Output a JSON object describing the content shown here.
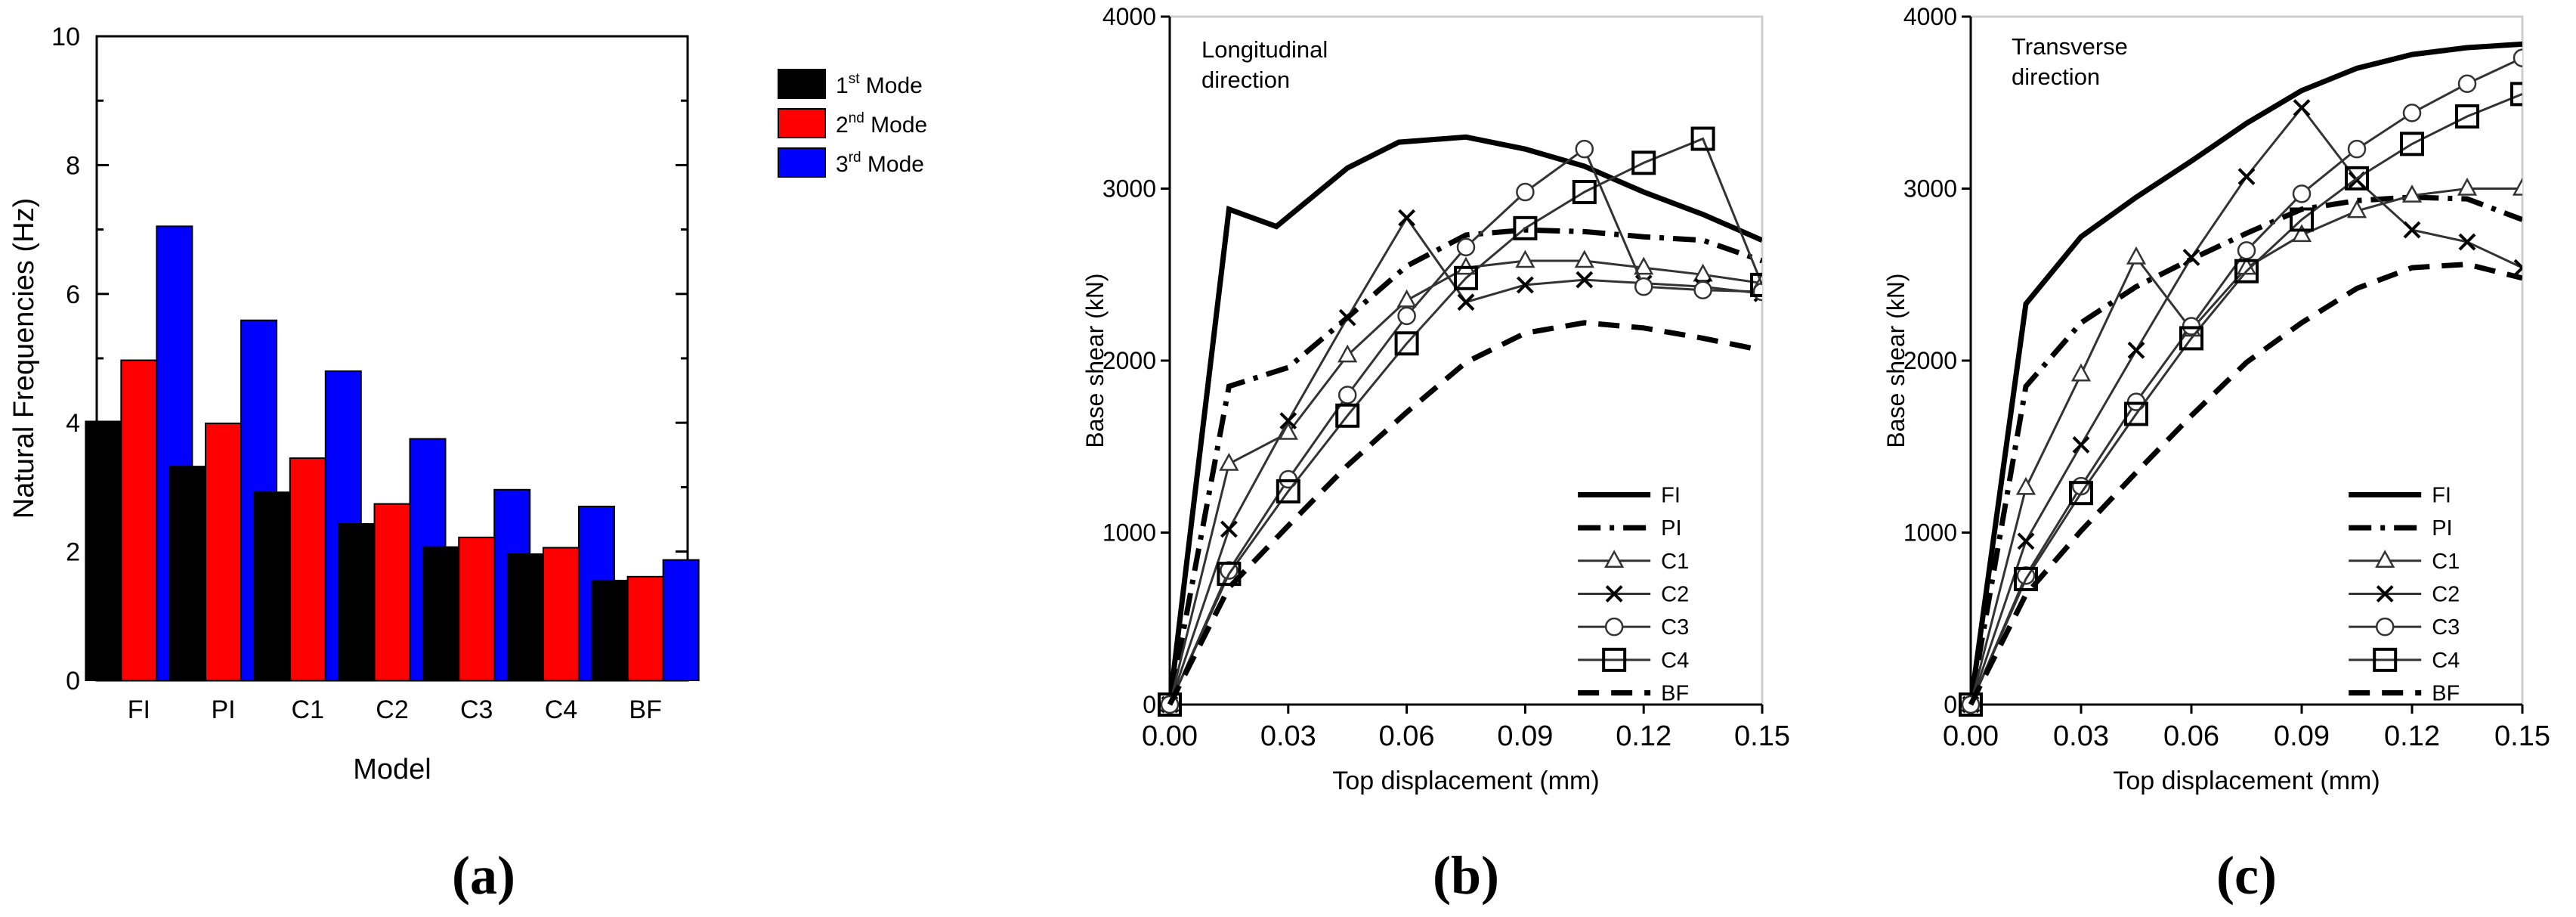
{
  "chart_data": [
    {
      "type": "bar",
      "xlabel": "Model",
      "ylabel": "Natural Frequencies (Hz)",
      "ylim": [
        0,
        10
      ],
      "yticks": [
        0,
        2,
        4,
        6,
        8,
        10
      ],
      "legend_position": "top-right",
      "grid": false,
      "categories": [
        "FI",
        "PI",
        "C1",
        "C2",
        "C3",
        "C4",
        "BF"
      ],
      "series": [
        {
          "name_base": "1",
          "name_sup": "st",
          "name_rest": " Mode",
          "color": "#000000",
          "values": [
            4.02,
            3.32,
            2.92,
            2.43,
            2.07,
            1.96,
            1.55
          ]
        },
        {
          "name_base": "2",
          "name_sup": "nd",
          "name_rest": " Mode",
          "color": "#ff0000",
          "values": [
            4.97,
            3.99,
            3.45,
            2.74,
            2.22,
            2.06,
            1.61
          ]
        },
        {
          "name_base": "3",
          "name_sup": "rd",
          "name_rest": " Mode",
          "color": "#0000ff",
          "values": [
            7.05,
            5.59,
            4.8,
            3.75,
            2.96,
            2.7,
            1.87
          ]
        }
      ],
      "caption": "(a)"
    },
    {
      "type": "line",
      "annotation_lines": [
        "Longitudinal",
        "direction"
      ],
      "xlabel": "Top displacement (mm)",
      "ylabel": "Base shear (kN)",
      "xlim": [
        0,
        0.15
      ],
      "ylim": [
        0,
        4000
      ],
      "xticks": [
        "0.00",
        "0.03",
        "0.06",
        "0.09",
        "0.12",
        "0.15"
      ],
      "yticks": [
        "0",
        "1000",
        "2000",
        "3000",
        "4000"
      ],
      "legend_position": "bottom-right",
      "series": [
        {
          "name": "FI",
          "style": "solid-thick",
          "points": [
            [
              0,
              0
            ],
            [
              0.015,
              2880
            ],
            [
              0.027,
              2780
            ],
            [
              0.045,
              3120
            ],
            [
              0.058,
              3270
            ],
            [
              0.075,
              3300
            ],
            [
              0.09,
              3230
            ],
            [
              0.105,
              3130
            ],
            [
              0.12,
              2980
            ],
            [
              0.135,
              2850
            ],
            [
              0.15,
              2700
            ]
          ]
        },
        {
          "name": "PI",
          "style": "dashdot",
          "points": [
            [
              0,
              0
            ],
            [
              0.015,
              1850
            ],
            [
              0.03,
              1960
            ],
            [
              0.045,
              2250
            ],
            [
              0.06,
              2550
            ],
            [
              0.075,
              2730
            ],
            [
              0.09,
              2760
            ],
            [
              0.105,
              2750
            ],
            [
              0.12,
              2720
            ],
            [
              0.135,
              2700
            ],
            [
              0.15,
              2580
            ]
          ]
        },
        {
          "name": "C1",
          "style": "triangle",
          "points": [
            [
              0,
              0
            ],
            [
              0.015,
              1400
            ],
            [
              0.03,
              1580
            ],
            [
              0.045,
              2030
            ],
            [
              0.06,
              2350
            ],
            [
              0.075,
              2540
            ],
            [
              0.09,
              2580
            ],
            [
              0.105,
              2580
            ],
            [
              0.12,
              2540
            ],
            [
              0.135,
              2500
            ],
            [
              0.15,
              2450
            ]
          ]
        },
        {
          "name": "C2",
          "style": "cross",
          "points": [
            [
              0,
              0
            ],
            [
              0.015,
              1020
            ],
            [
              0.03,
              1650
            ],
            [
              0.045,
              2250
            ],
            [
              0.06,
              2830
            ],
            [
              0.075,
              2340
            ],
            [
              0.09,
              2440
            ],
            [
              0.105,
              2470
            ],
            [
              0.12,
              2450
            ],
            [
              0.135,
              2430
            ],
            [
              0.15,
              2390
            ]
          ]
        },
        {
          "name": "C3",
          "style": "circle",
          "points": [
            [
              0,
              0
            ],
            [
              0.015,
              780
            ],
            [
              0.03,
              1310
            ],
            [
              0.045,
              1800
            ],
            [
              0.06,
              2260
            ],
            [
              0.075,
              2660
            ],
            [
              0.09,
              2980
            ],
            [
              0.105,
              3230
            ],
            [
              0.12,
              2430
            ],
            [
              0.135,
              2410
            ],
            [
              0.15,
              2400
            ]
          ]
        },
        {
          "name": "C4",
          "style": "square",
          "points": [
            [
              0,
              0
            ],
            [
              0.015,
              760
            ],
            [
              0.03,
              1240
            ],
            [
              0.045,
              1680
            ],
            [
              0.06,
              2100
            ],
            [
              0.075,
              2480
            ],
            [
              0.09,
              2770
            ],
            [
              0.105,
              2980
            ],
            [
              0.12,
              3150
            ],
            [
              0.135,
              3290
            ],
            [
              0.15,
              2440
            ]
          ]
        },
        {
          "name": "BF",
          "style": "dashed-thick",
          "points": [
            [
              0,
              0
            ],
            [
              0.015,
              680
            ],
            [
              0.03,
              1040
            ],
            [
              0.045,
              1390
            ],
            [
              0.06,
              1700
            ],
            [
              0.075,
              1990
            ],
            [
              0.09,
              2160
            ],
            [
              0.105,
              2220
            ],
            [
              0.12,
              2190
            ],
            [
              0.135,
              2130
            ],
            [
              0.15,
              2060
            ]
          ]
        }
      ],
      "caption": "(b)"
    },
    {
      "type": "line",
      "annotation_lines": [
        "Transverse",
        "direction"
      ],
      "xlabel": "Top displacement (mm)",
      "ylabel": "Base shear (kN)",
      "xlim": [
        0,
        0.15
      ],
      "ylim": [
        0,
        4000
      ],
      "xticks": [
        "0.00",
        "0.03",
        "0.06",
        "0.09",
        "0.12",
        "0.15"
      ],
      "yticks": [
        "0",
        "1000",
        "2000",
        "3000",
        "4000"
      ],
      "legend_position": "bottom-right",
      "series": [
        {
          "name": "FI",
          "style": "solid-thick",
          "points": [
            [
              0,
              0
            ],
            [
              0.015,
              2330
            ],
            [
              0.03,
              2720
            ],
            [
              0.045,
              2950
            ],
            [
              0.06,
              3160
            ],
            [
              0.075,
              3380
            ],
            [
              0.09,
              3570
            ],
            [
              0.105,
              3700
            ],
            [
              0.12,
              3780
            ],
            [
              0.135,
              3820
            ],
            [
              0.15,
              3840
            ]
          ]
        },
        {
          "name": "PI",
          "style": "dashdot",
          "points": [
            [
              0,
              0
            ],
            [
              0.015,
              1850
            ],
            [
              0.03,
              2220
            ],
            [
              0.045,
              2430
            ],
            [
              0.06,
              2590
            ],
            [
              0.075,
              2740
            ],
            [
              0.09,
              2880
            ],
            [
              0.105,
              2930
            ],
            [
              0.12,
              2950
            ],
            [
              0.135,
              2940
            ],
            [
              0.15,
              2820
            ]
          ]
        },
        {
          "name": "C1",
          "style": "triangle",
          "points": [
            [
              0,
              0
            ],
            [
              0.015,
              1260
            ],
            [
              0.03,
              1920
            ],
            [
              0.045,
              2600
            ],
            [
              0.06,
              2180
            ],
            [
              0.075,
              2540
            ],
            [
              0.09,
              2730
            ],
            [
              0.105,
              2870
            ],
            [
              0.12,
              2960
            ],
            [
              0.135,
              3000
            ],
            [
              0.15,
              3000
            ]
          ]
        },
        {
          "name": "C2",
          "style": "cross",
          "points": [
            [
              0,
              0
            ],
            [
              0.015,
              950
            ],
            [
              0.03,
              1510
            ],
            [
              0.045,
              2060
            ],
            [
              0.06,
              2600
            ],
            [
              0.075,
              3070
            ],
            [
              0.09,
              3470
            ],
            [
              0.105,
              3050
            ],
            [
              0.12,
              2760
            ],
            [
              0.135,
              2690
            ],
            [
              0.15,
              2540
            ]
          ]
        },
        {
          "name": "C3",
          "style": "circle",
          "points": [
            [
              0,
              0
            ],
            [
              0.015,
              750
            ],
            [
              0.03,
              1270
            ],
            [
              0.045,
              1760
            ],
            [
              0.06,
              2200
            ],
            [
              0.075,
              2640
            ],
            [
              0.09,
              2970
            ],
            [
              0.105,
              3230
            ],
            [
              0.12,
              3440
            ],
            [
              0.135,
              3610
            ],
            [
              0.15,
              3760
            ]
          ]
        },
        {
          "name": "C4",
          "style": "square",
          "points": [
            [
              0,
              0
            ],
            [
              0.015,
              730
            ],
            [
              0.03,
              1230
            ],
            [
              0.045,
              1690
            ],
            [
              0.06,
              2130
            ],
            [
              0.075,
              2520
            ],
            [
              0.09,
              2820
            ],
            [
              0.105,
              3060
            ],
            [
              0.12,
              3260
            ],
            [
              0.135,
              3420
            ],
            [
              0.15,
              3550
            ]
          ]
        },
        {
          "name": "BF",
          "style": "dashed-thick",
          "points": [
            [
              0,
              0
            ],
            [
              0.015,
              640
            ],
            [
              0.03,
              1010
            ],
            [
              0.045,
              1350
            ],
            [
              0.06,
              1680
            ],
            [
              0.075,
              1990
            ],
            [
              0.09,
              2220
            ],
            [
              0.105,
              2420
            ],
            [
              0.12,
              2540
            ],
            [
              0.135,
              2560
            ],
            [
              0.15,
              2480
            ]
          ]
        }
      ],
      "caption": "(c)"
    }
  ]
}
